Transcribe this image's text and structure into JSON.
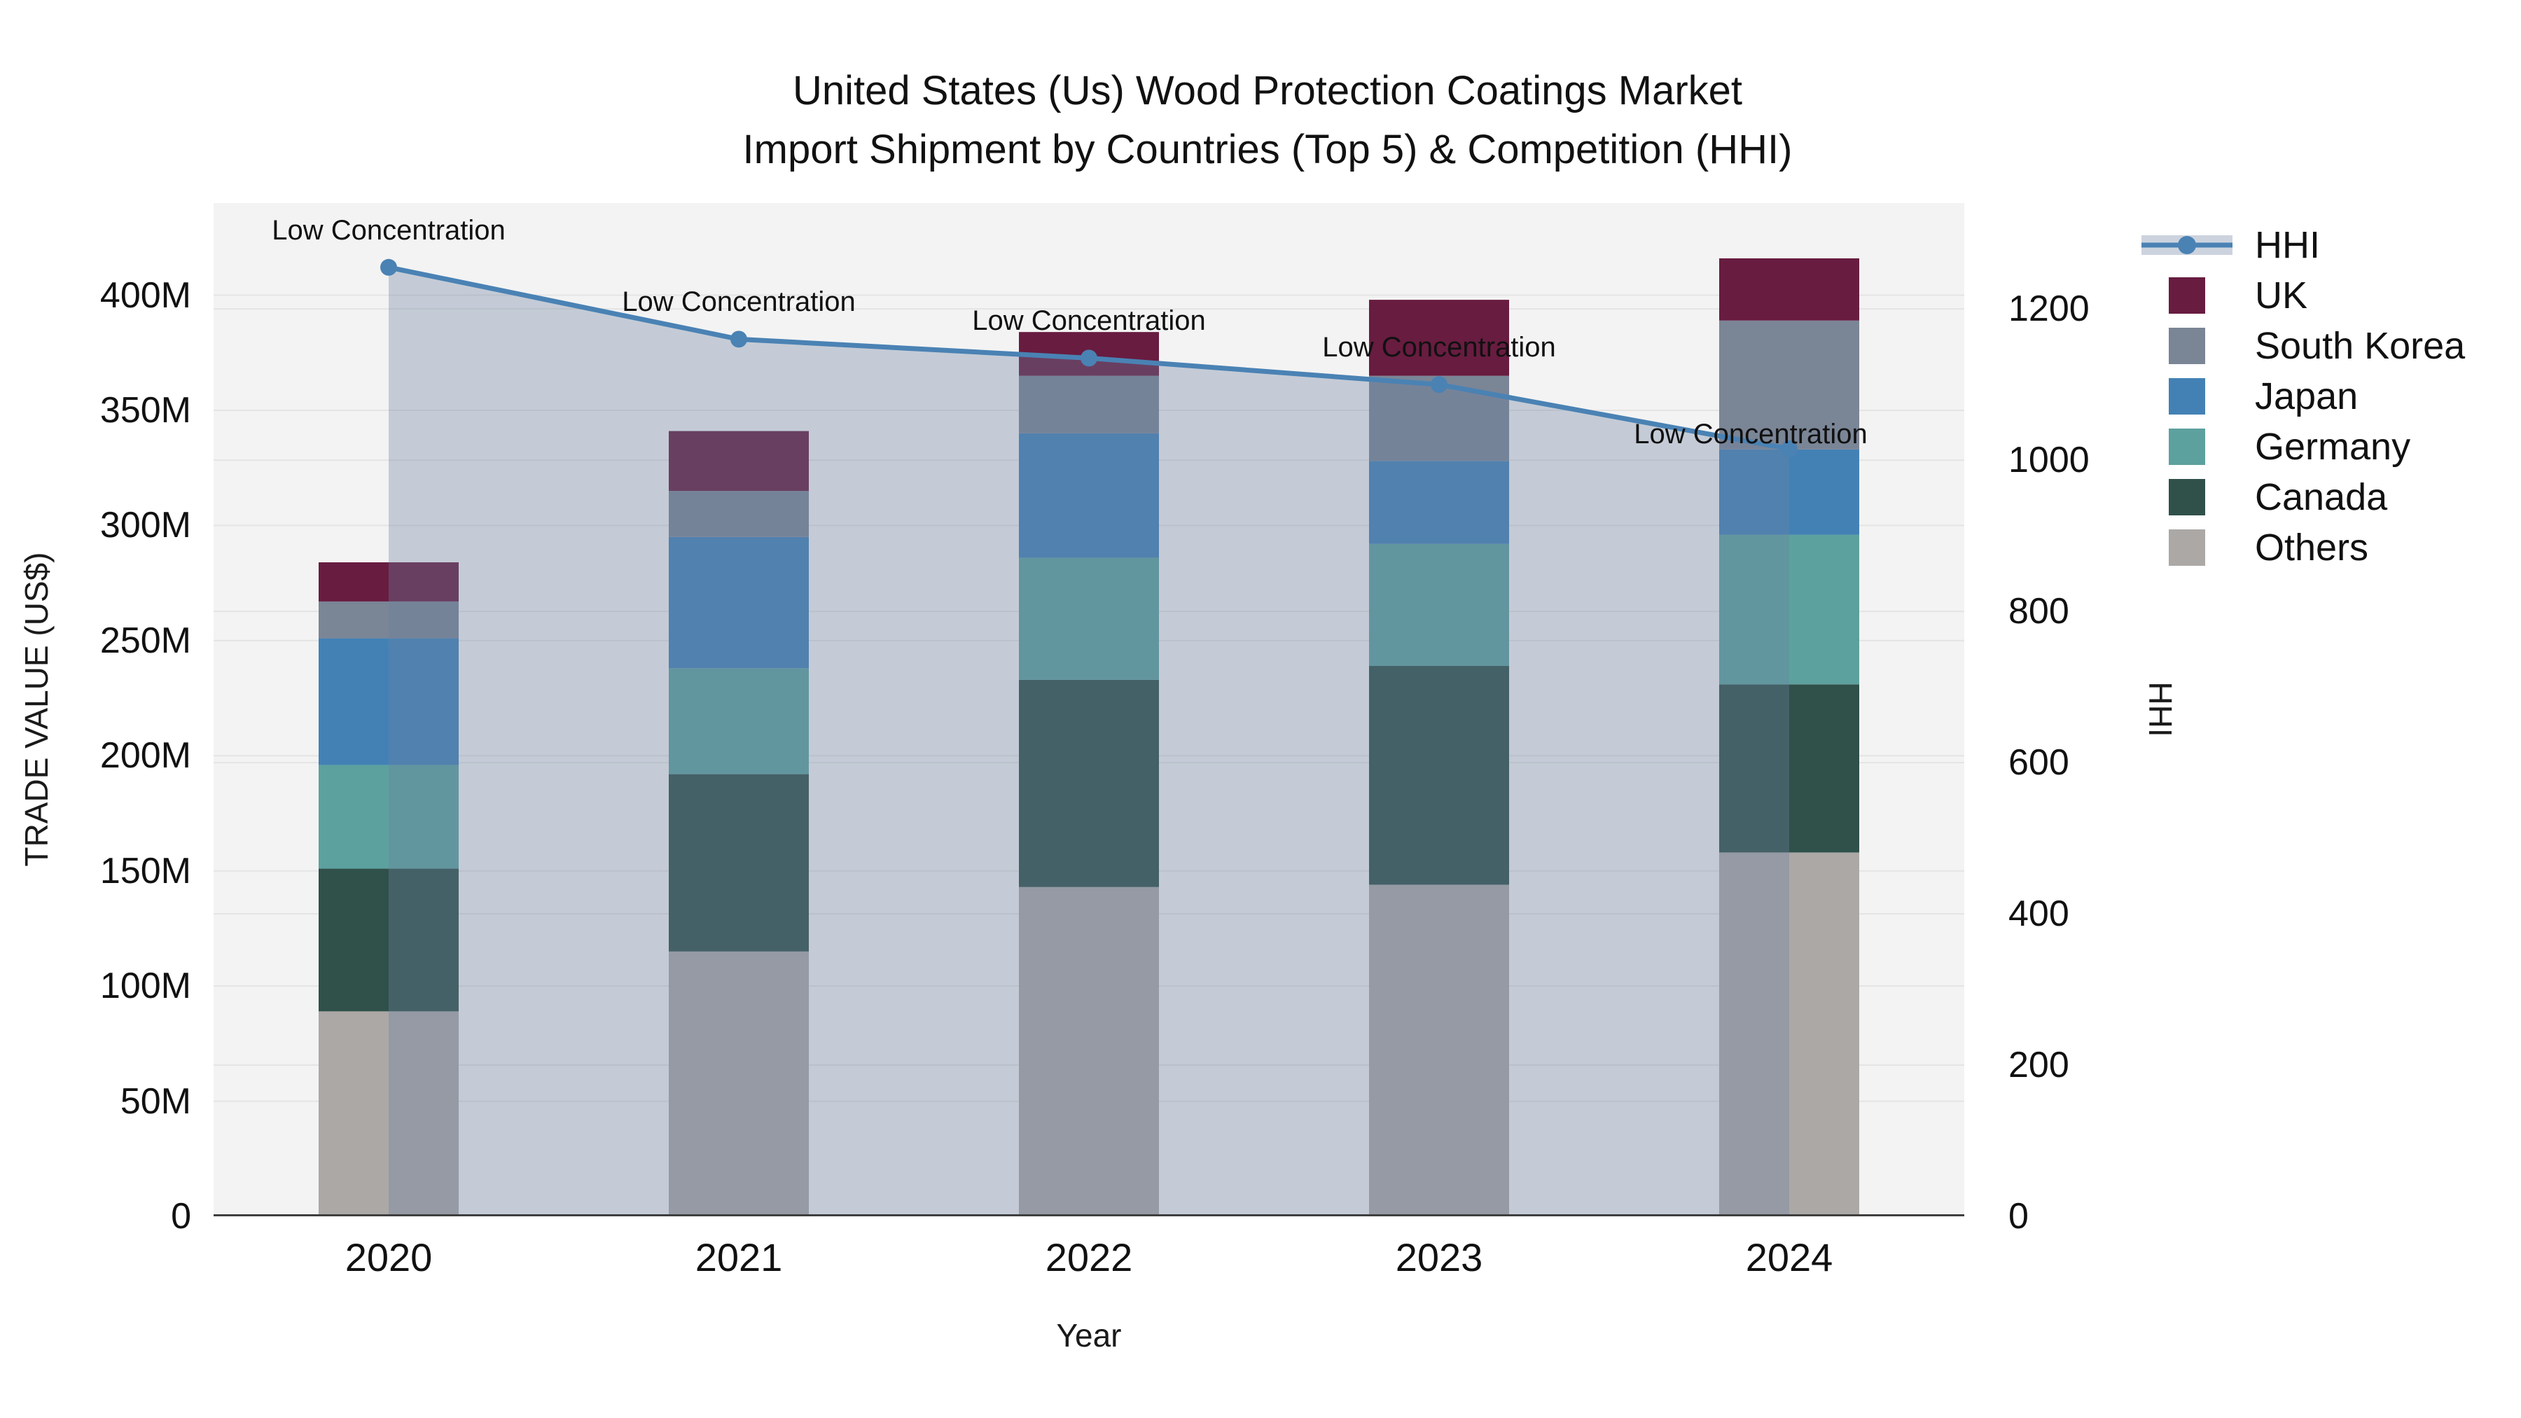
{
  "title": {
    "line1": "United States (Us) Wood Protection Coatings Market",
    "line2": "Import Shipment by Countries (Top 5) & Competition (HHI)"
  },
  "axes": {
    "left": {
      "label": "TRADE VALUE (US$)",
      "ticks": [
        "0",
        "50M",
        "100M",
        "150M",
        "200M",
        "250M",
        "300M",
        "350M",
        "400M"
      ],
      "tick_values": [
        0,
        50,
        100,
        150,
        200,
        250,
        300,
        350,
        400
      ],
      "range": [
        0,
        440
      ]
    },
    "right": {
      "label": "HHI",
      "ticks": [
        "0",
        "200",
        "400",
        "600",
        "800",
        "1000",
        "1200"
      ],
      "tick_values": [
        0,
        200,
        400,
        600,
        800,
        1000,
        1200
      ],
      "range": [
        0,
        1340
      ]
    },
    "bottom": {
      "label": "Year",
      "categories": [
        "2020",
        "2021",
        "2022",
        "2023",
        "2024"
      ]
    }
  },
  "chart_data": {
    "type": "bar+line",
    "title": "United States (Us) Wood Protection Coatings Market Import Shipment by Countries (Top 5) & Competition (HHI)",
    "xlabel": "Year",
    "ylabel_left": "TRADE VALUE (US$)",
    "ylabel_right": "HHI",
    "categories": [
      "2020",
      "2021",
      "2022",
      "2023",
      "2024"
    ],
    "stacked": true,
    "grid": true,
    "bar_unit": "M US$",
    "series": [
      {
        "name": "Others",
        "color": "#aba8a6",
        "values": [
          89,
          115,
          143,
          144,
          158
        ]
      },
      {
        "name": "Canada",
        "color": "#30504a",
        "values": [
          62,
          77,
          90,
          95,
          73
        ]
      },
      {
        "name": "Germany",
        "color": "#5ca19e",
        "values": [
          45,
          46,
          53,
          53,
          65
        ]
      },
      {
        "name": "Japan",
        "color": "#4381b5",
        "values": [
          55,
          57,
          54,
          36,
          37
        ]
      },
      {
        "name": "South Korea",
        "color": "#7a8596",
        "values": [
          16,
          20,
          25,
          37,
          56
        ]
      },
      {
        "name": "UK",
        "color": "#681c40",
        "values": [
          17,
          26,
          19,
          33,
          27
        ]
      }
    ],
    "bar_totals": [
      284,
      341,
      384,
      398,
      416
    ],
    "line_series": {
      "name": "HHI",
      "axis": "right",
      "color": "#4a82b4",
      "fill_color": "rgba(110,128,160,0.35)",
      "values": [
        1255,
        1160,
        1135,
        1100,
        1015
      ]
    },
    "annotations": [
      {
        "text": "Low Concentration",
        "category": "2020"
      },
      {
        "text": "Low Concentration",
        "category": "2021"
      },
      {
        "text": "Low Concentration",
        "category": "2022"
      },
      {
        "text": "Low Concentration",
        "category": "2023"
      },
      {
        "text": "Low Concentration",
        "category": "2024"
      }
    ],
    "legend_position": "right"
  },
  "legend": {
    "items": [
      {
        "label": "HHI",
        "type": "line",
        "color": "#4a82b4",
        "band_color": "rgba(110,128,160,0.35)"
      },
      {
        "label": "UK",
        "type": "swatch",
        "color": "#681c40"
      },
      {
        "label": "South Korea",
        "type": "swatch",
        "color": "#7a8596"
      },
      {
        "label": "Japan",
        "type": "swatch",
        "color": "#4381b5"
      },
      {
        "label": "Germany",
        "type": "swatch",
        "color": "#5ca19e"
      },
      {
        "label": "Canada",
        "type": "swatch",
        "color": "#30504a"
      },
      {
        "label": "Others",
        "type": "swatch",
        "color": "#aba8a6"
      }
    ]
  },
  "style": {
    "plot_bg": "#f3f3f3",
    "grid_color": "#e4e4e4",
    "axis_line_color": "#3f3f3f",
    "text_color": "#111111"
  }
}
